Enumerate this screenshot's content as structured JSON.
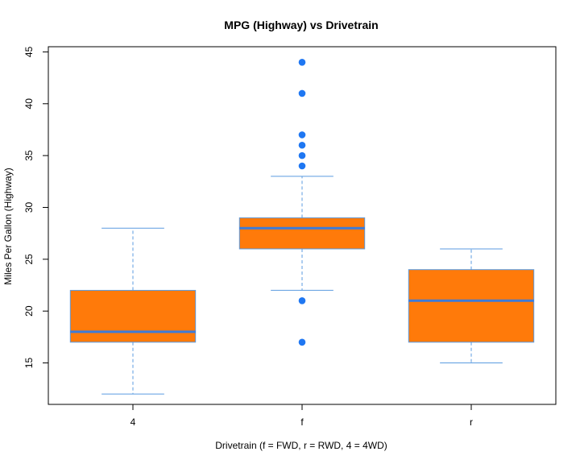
{
  "chart_data": {
    "type": "boxplot",
    "title": "MPG (Highway) vs Drivetrain",
    "xlabel": "Drivetrain (f = FWD, r = RWD, 4 = 4WD)",
    "ylabel": "Miles Per Gallon (Highway)",
    "ylim": [
      11,
      45.5
    ],
    "yticks": [
      15,
      20,
      25,
      30,
      35,
      40,
      45
    ],
    "categories": [
      "4",
      "f",
      "r"
    ],
    "boxes": [
      {
        "category": "4",
        "whisker_low": 12,
        "q1": 17,
        "median": 18,
        "q3": 22,
        "whisker_high": 28,
        "outliers": []
      },
      {
        "category": "f",
        "whisker_low": 22,
        "q1": 26,
        "median": 28,
        "q3": 29,
        "whisker_high": 33,
        "outliers": [
          17,
          21,
          34,
          35,
          36,
          37,
          41,
          44
        ]
      },
      {
        "category": "r",
        "whisker_low": 15,
        "q1": 17,
        "median": 21,
        "q3": 24,
        "whisker_high": 26,
        "outliers": []
      }
    ],
    "colors": {
      "box_fill": "#FF7A0A",
      "median": "#3D7BD9",
      "whisker": "#5B9BE0",
      "outlier": "#1F77F2",
      "frame": "#000000"
    },
    "grid": false
  }
}
